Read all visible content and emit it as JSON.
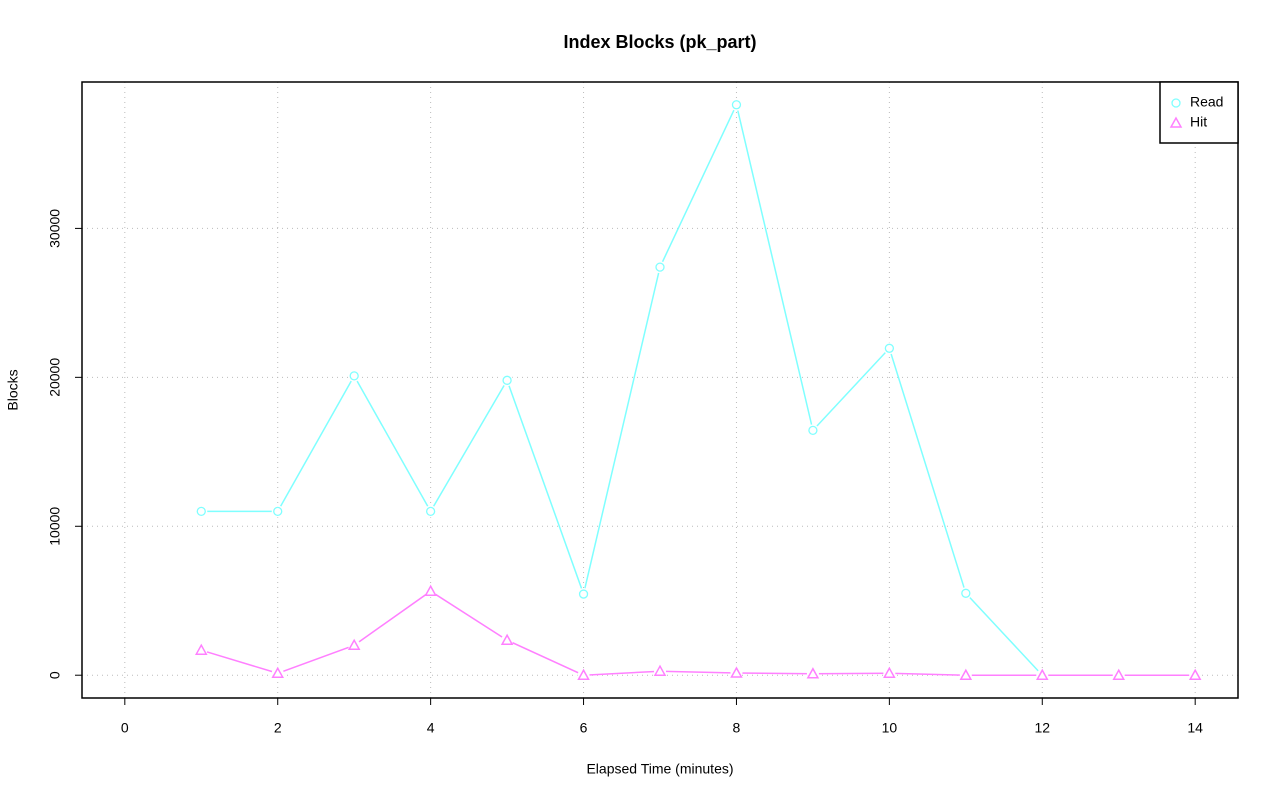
{
  "chart_data": {
    "type": "line",
    "title": "Index Blocks (pk_part)",
    "x_label": "Elapsed Time (minutes)",
    "y_label": "Blocks",
    "x": [
      1,
      2,
      3,
      4,
      5,
      6,
      7,
      8,
      9,
      10,
      11,
      12,
      13,
      14
    ],
    "series": [
      {
        "name": "Read",
        "color": "#7fffff",
        "marker": "circle",
        "values": [
          11000,
          11000,
          20100,
          11000,
          19800,
          5450,
          27400,
          38300,
          16440,
          21950,
          5500,
          0,
          0,
          0
        ]
      },
      {
        "name": "Hit",
        "color": "#ff7fff",
        "marker": "triangle",
        "values": [
          1680,
          130,
          2010,
          5640,
          2350,
          0,
          270,
          150,
          100,
          130,
          0,
          0,
          0,
          0
        ]
      }
    ],
    "xlim": [
      -0.56,
      14.56
    ],
    "ylim": [
      -1530,
      39830
    ],
    "xticks": [
      0,
      2,
      4,
      6,
      8,
      10,
      12,
      14
    ],
    "yticks": [
      0,
      10000,
      20000,
      30000
    ],
    "grid": true,
    "legend": "top-right"
  }
}
